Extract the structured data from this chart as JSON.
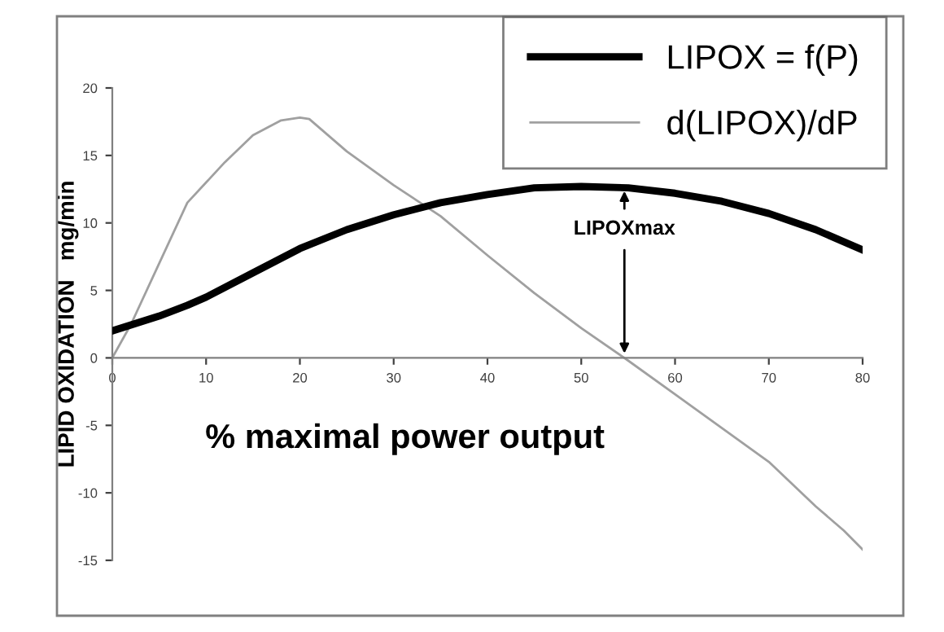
{
  "chart_data": {
    "type": "line",
    "xlabel": "% maximal power output",
    "ylabel": "LIPID OXIDATION   mg/min",
    "series": [
      {
        "name": "LIPOX = f(P)",
        "color": "#000000",
        "x": [
          0,
          5,
          8,
          10,
          15,
          20,
          25,
          30,
          35,
          40,
          45,
          50,
          55,
          60,
          65,
          70,
          75,
          80
        ],
        "values": [
          2,
          3.1,
          3.9,
          4.5,
          6.3,
          8.1,
          9.5,
          10.6,
          11.5,
          12.1,
          12.6,
          12.7,
          12.6,
          12.2,
          11.6,
          10.7,
          9.5,
          8.0
        ]
      },
      {
        "name": "d(LIPOX)/dP",
        "color": "#a0a0a0",
        "x": [
          0,
          2,
          5,
          8,
          10,
          12,
          15,
          18,
          20,
          21,
          25,
          30,
          35,
          40,
          45,
          50,
          55,
          60,
          65,
          70,
          75,
          78,
          80
        ],
        "values": [
          0,
          2.5,
          7,
          11.5,
          13,
          14.5,
          16.5,
          17.6,
          17.8,
          17.7,
          15.3,
          12.8,
          10.5,
          7.6,
          4.8,
          2.2,
          -0.2,
          -2.7,
          -5.2,
          -7.7,
          -11,
          -12.8,
          -14.2
        ]
      }
    ],
    "annotations": [
      {
        "text": "LIPOXmax",
        "x": 54.6,
        "y": 0
      }
    ],
    "xlim": [
      0,
      80
    ],
    "xticks": [
      0,
      10,
      20,
      30,
      40,
      50,
      60,
      70,
      80
    ],
    "ylim": [
      -15,
      20
    ],
    "yticks": [
      -15,
      -10,
      -5,
      0,
      5,
      10,
      15,
      20
    ],
    "legend": "top right",
    "grid": false,
    "marker": "none",
    "line_style": "solid"
  }
}
